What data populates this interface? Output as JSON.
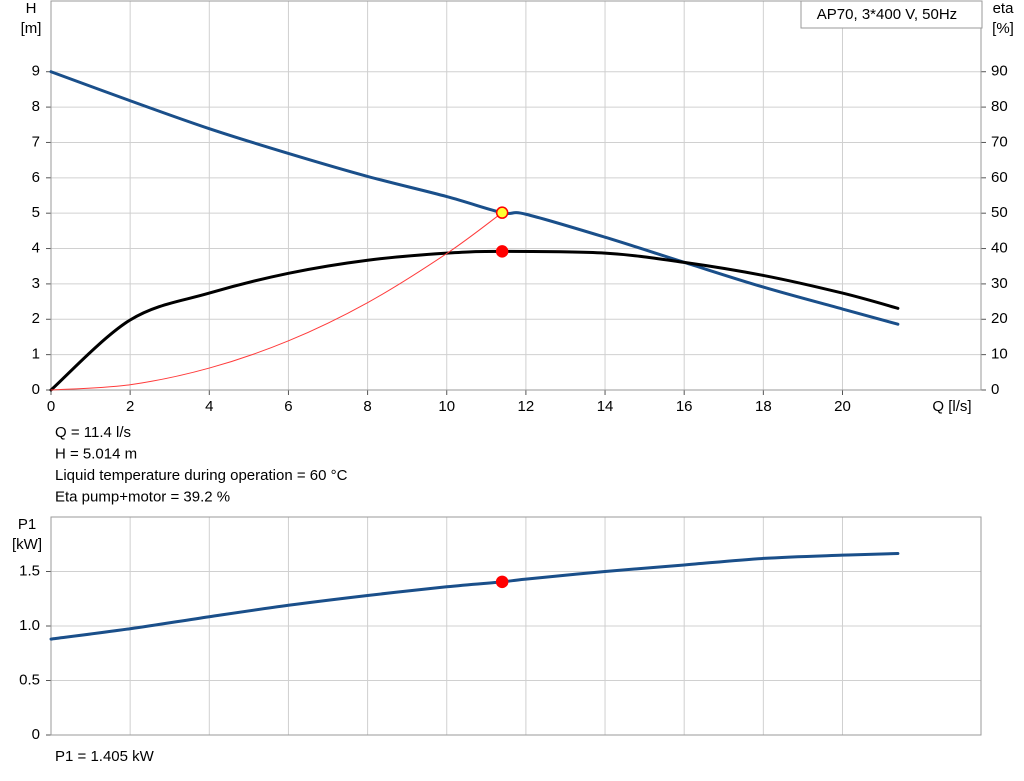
{
  "chart_data": [
    {
      "type": "line",
      "title": "AP70, 3*400 V, 50Hz",
      "ylabel": [
        "H",
        "[m]"
      ],
      "y2label": [
        "eta",
        "[%]"
      ],
      "xlabel": "Q [l/s]",
      "xlim": [
        0,
        23.5
      ],
      "xticks": [
        0,
        2,
        4,
        6,
        8,
        10,
        12,
        14,
        16,
        18,
        20
      ],
      "ylim": [
        0,
        11
      ],
      "yticks": [
        0,
        1,
        2,
        3,
        4,
        5,
        6,
        7,
        8,
        9
      ],
      "y2lim": [
        0,
        110
      ],
      "y2ticks": [
        0,
        10,
        20,
        30,
        40,
        50,
        60,
        70,
        80,
        90
      ],
      "grid": true,
      "series": [
        {
          "color": "#1a4f8a",
          "width": 3,
          "x": [
            0,
            2,
            4,
            6,
            8,
            10,
            11.4,
            12,
            14,
            16,
            18,
            20,
            21.4
          ],
          "values": [
            9.0,
            8.18,
            7.39,
            6.69,
            6.04,
            5.47,
            5.014,
            4.97,
            4.32,
            3.61,
            2.91,
            2.29,
            1.86
          ]
        },
        {
          "color": "#000000",
          "width": 3,
          "axis": "y2",
          "x": [
            0,
            2,
            4,
            6,
            8,
            10,
            11.4,
            14,
            16,
            18,
            20,
            21.4
          ],
          "values": [
            0,
            19.8,
            27.4,
            33.0,
            36.7,
            38.7,
            39.2,
            38.7,
            36.1,
            32.4,
            27.4,
            23.1
          ]
        },
        {
          "color": "#ff3b3b",
          "width": 1,
          "x": [
            0,
            2,
            4,
            6,
            8,
            10,
            11.4
          ],
          "values": [
            0,
            0.15,
            0.62,
            1.39,
            2.47,
            3.86,
            5.014
          ]
        }
      ],
      "points": [
        {
          "x": 11.4,
          "y": 39.2,
          "axis": "y2",
          "color": "#ff0000",
          "edge": "#ff0000"
        },
        {
          "x": 11.4,
          "y": 5.014,
          "color": "#ffff33",
          "edge": "#ff0000"
        }
      ],
      "notes": [
        "Q = 11.4 l/s",
        "H = 5.014 m",
        "Liquid temperature during operation = 60 °C",
        "Eta pump+motor = 39.2 %"
      ]
    },
    {
      "type": "line",
      "ylabel": [
        "P1",
        "[kW]"
      ],
      "xlim": [
        0,
        23.5
      ],
      "ylim": [
        0,
        2.0
      ],
      "yticks": [
        0,
        0.5,
        {
          "value": 1.0,
          "label": "1.0"
        },
        1.5
      ],
      "grid": true,
      "series": [
        {
          "color": "#1a4f8a",
          "width": 3,
          "x": [
            0,
            2,
            4,
            6,
            8,
            10,
            11.4,
            12,
            14,
            16,
            18,
            20,
            21.4
          ],
          "values": [
            0.88,
            0.975,
            1.085,
            1.19,
            1.28,
            1.36,
            1.405,
            1.43,
            1.5,
            1.56,
            1.62,
            1.65,
            1.665
          ]
        }
      ],
      "points": [
        {
          "x": 11.4,
          "y": 1.405,
          "color": "#ff0000",
          "edge": "#ff0000"
        }
      ],
      "notes": [
        "P1 = 1.405 kW"
      ]
    }
  ]
}
